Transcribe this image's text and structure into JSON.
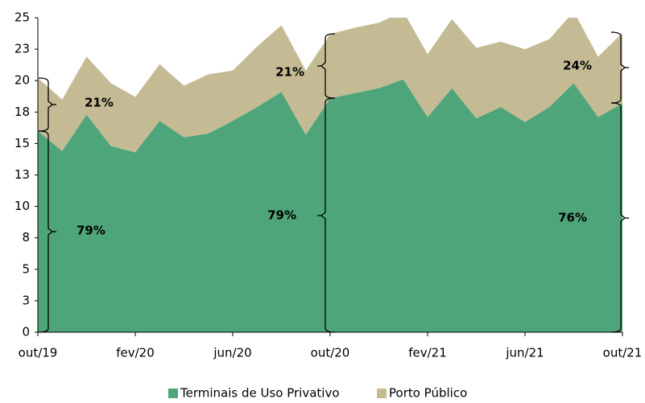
{
  "chart_data": {
    "type": "stacked-area",
    "categories": [
      "out/19",
      null,
      null,
      null,
      "fev/20",
      null,
      null,
      null,
      "jun/20",
      null,
      null,
      null,
      "out/20",
      null,
      null,
      null,
      "fev/21",
      null,
      null,
      null,
      "jun/21",
      null,
      null,
      null,
      "out/21"
    ],
    "series": [
      {
        "name": "Terminais de Uso Privativo",
        "color": "#4fa57a",
        "values": [
          16.0,
          14.4,
          17.3,
          14.8,
          14.3,
          16.8,
          15.5,
          15.8,
          16.8,
          17.9,
          19.1,
          15.7,
          18.6,
          19.0,
          19.4,
          20.1,
          17.1,
          19.4,
          17.0,
          17.9,
          16.7,
          17.9,
          19.8,
          17.1,
          18.2
        ]
      },
      {
        "name": "Porto Público",
        "color": "#c4bb95",
        "values": [
          4.2,
          4.1,
          4.6,
          5.0,
          4.4,
          4.5,
          4.1,
          4.7,
          4.0,
          4.8,
          5.3,
          5.1,
          5.1,
          5.2,
          5.2,
          5.4,
          5.0,
          5.5,
          5.6,
          5.2,
          5.8,
          5.4,
          5.7,
          4.8,
          5.6
        ]
      }
    ],
    "ylim": [
      0,
      25
    ],
    "yticks": [
      0,
      {
        "value": 2.5,
        "label": "3"
      },
      5,
      {
        "value": 7.5,
        "label": "8"
      },
      10,
      {
        "value": 12.5,
        "label": "13"
      },
      15,
      {
        "value": 17.5,
        "label": "18"
      },
      20,
      {
        "value": 22.5,
        "label": "23"
      },
      25
    ],
    "annotations": [
      "21%",
      "79%",
      "21%",
      "79%",
      "24%",
      "76%"
    ]
  }
}
